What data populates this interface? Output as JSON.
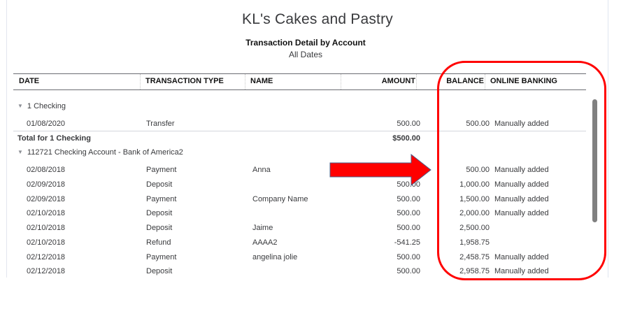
{
  "report": {
    "company": "KL's Cakes and Pastry",
    "title": "Transaction Detail by Account",
    "date_range": "All Dates"
  },
  "columns": {
    "date": "DATE",
    "type": "TRANSACTION TYPE",
    "name": "NAME",
    "amount": "AMOUNT",
    "balance": "BALANCE",
    "online_banking": "ONLINE BANKING"
  },
  "groups": [
    {
      "label": "1 Checking",
      "rows": [
        {
          "date": "01/08/2020",
          "type": "Transfer",
          "name": "",
          "amount": "500.00",
          "balance": "500.00",
          "online_banking": "Manually added"
        }
      ],
      "total_label": "Total for 1 Checking",
      "total_amount": "$500.00"
    },
    {
      "label": "112721 Checking Account - Bank of America2",
      "rows": [
        {
          "date": "02/08/2018",
          "type": "Payment",
          "name": "Anna",
          "amount": "500.00",
          "balance": "500.00",
          "online_banking": "Manually added"
        },
        {
          "date": "02/09/2018",
          "type": "Deposit",
          "name": "",
          "amount": "500.00",
          "balance": "1,000.00",
          "online_banking": "Manually added"
        },
        {
          "date": "02/09/2018",
          "type": "Payment",
          "name": "Company Name",
          "amount": "500.00",
          "balance": "1,500.00",
          "online_banking": "Manually added"
        },
        {
          "date": "02/10/2018",
          "type": "Deposit",
          "name": "",
          "amount": "500.00",
          "balance": "2,000.00",
          "online_banking": "Manually added"
        },
        {
          "date": "02/10/2018",
          "type": "Deposit",
          "name": "Jaime",
          "amount": "500.00",
          "balance": "2,500.00",
          "online_banking": ""
        },
        {
          "date": "02/10/2018",
          "type": "Refund",
          "name": "AAAA2",
          "amount": "-541.25",
          "balance": "1,958.75",
          "online_banking": ""
        },
        {
          "date": "02/12/2018",
          "type": "Payment",
          "name": "angelina jolie",
          "amount": "500.00",
          "balance": "2,458.75",
          "online_banking": "Manually added"
        },
        {
          "date": "02/12/2018",
          "type": "Deposit",
          "name": "",
          "amount": "500.00",
          "balance": "2,958.75",
          "online_banking": "Manually added"
        }
      ]
    }
  ],
  "annotations": {
    "highlight_color": "#ff0000",
    "arrow_color": "#ff0000",
    "arrow_outline": "#4a5f8a"
  },
  "icons": {
    "group_toggle": "caret-down-icon"
  }
}
